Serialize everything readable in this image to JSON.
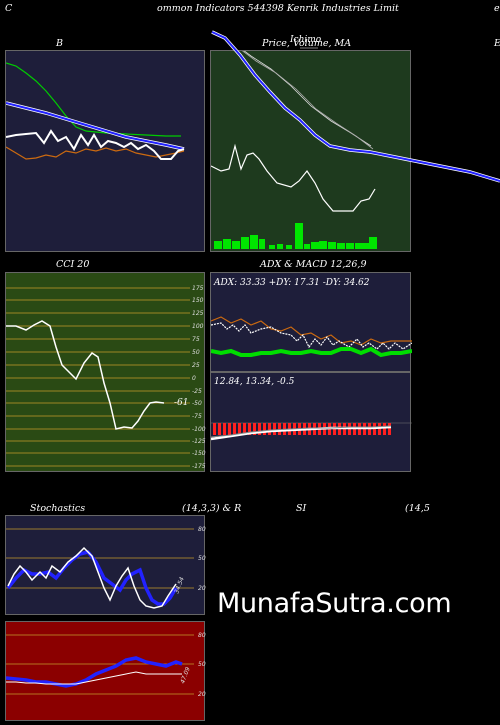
{
  "header": {
    "left_letter": "C",
    "title": "ommon  Indicators 544398  Kenrik Industries Limit",
    "right_letter": "e"
  },
  "panels": {
    "bollinger": {
      "label": "B",
      "bg": "#1e1e3a"
    },
    "price": {
      "label": "Price,  Volume,  MA",
      "overlay": "Ichimo",
      "bg": "#1e3a1e",
      "right_letter": "E"
    },
    "cci": {
      "label": "CCI 20",
      "value_label": "-61",
      "bg": "#2a4a14",
      "ticks": [
        "175",
        "150",
        "125",
        "100",
        "75",
        "50",
        "25",
        "0",
        "-25",
        "-50",
        "-75",
        "-100",
        "-125",
        "-150",
        "-175"
      ]
    },
    "adx": {
      "label": "ADX  & MACD 12,26,9",
      "reading": "ADX: 33.33  +DY: 17.31 -DY: 34.62",
      "bg": "#1e1e3a"
    },
    "macd": {
      "reading": "12.84,  13.34,  -0.5",
      "bg": "#1e1e3a"
    },
    "stochastics": {
      "label": "Stochastics",
      "params": "(14,3,3) & R",
      "value_label": "34.54",
      "bg": "#1e1e3a",
      "ticks": [
        "80",
        "50",
        "20"
      ]
    },
    "rsi": {
      "label": "SI",
      "params": "(14,5",
      "value_label": "47.09",
      "bg": "#8b0000",
      "ticks": [
        "80",
        "50",
        "20"
      ]
    }
  },
  "watermark": "MunafaSutra.com",
  "colors": {
    "green_line": "#00cc00",
    "blue_line": "#2222ff",
    "orange_line": "#cc6a10",
    "white_line": "#ffffff"
  }
}
